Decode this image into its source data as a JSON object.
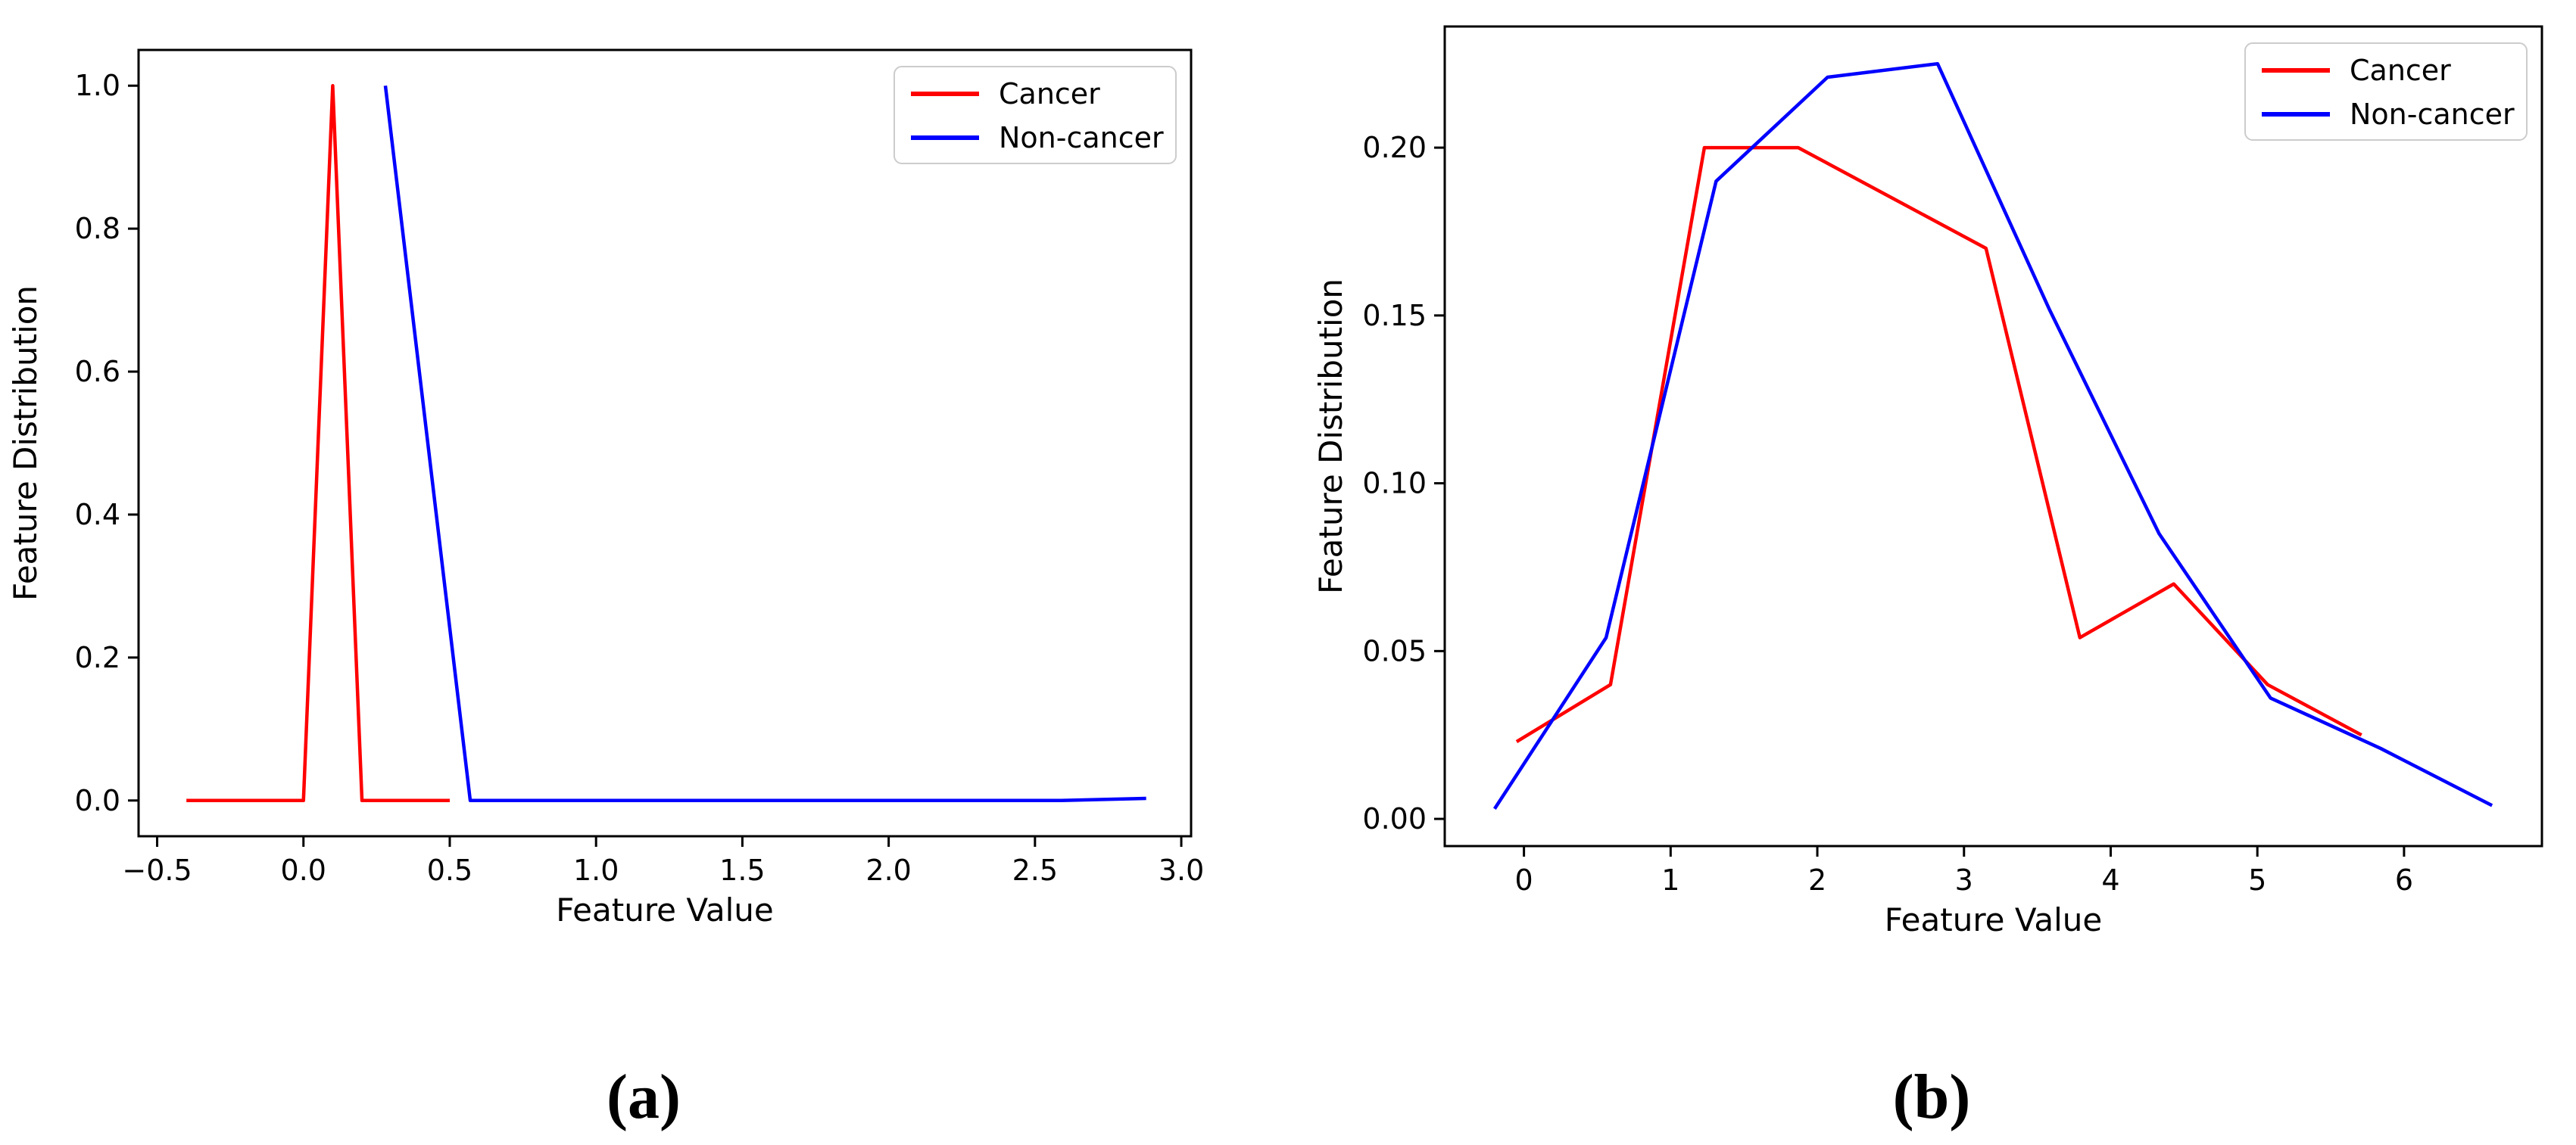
{
  "page": {
    "background": "#ffffff"
  },
  "captions": {
    "a": "(a)",
    "b": "(b)"
  },
  "legend": {
    "position": "upper right",
    "entries": [
      "Cancer",
      "Non-cancer"
    ]
  },
  "colors": {
    "cancer": "#ff0000",
    "non_cancer": "#0000ff",
    "axis": "#000000",
    "legend_border": "#cccccc"
  },
  "chart_data": [
    {
      "id": "a",
      "type": "line",
      "title": "",
      "xlabel": "Feature Value",
      "ylabel": "Feature Distribution",
      "xlim": [
        -0.5635,
        3.0335
      ],
      "ylim": [
        -0.05,
        1.05
      ],
      "grid": false,
      "legend_position": "upper right",
      "xtick_values": [
        -0.5,
        0.0,
        0.5,
        1.0,
        1.5,
        2.0,
        2.5,
        3.0
      ],
      "xtick_labels": [
        "−0.5",
        "0.0",
        "0.5",
        "1.0",
        "1.5",
        "2.0",
        "2.5",
        "3.0"
      ],
      "ytick_values": [
        0.0,
        0.2,
        0.4,
        0.6,
        0.8,
        1.0
      ],
      "ytick_labels": [
        "0.0",
        "0.2",
        "0.4",
        "0.6",
        "0.8",
        "1.0"
      ],
      "series": [
        {
          "name": "Cancer",
          "color": "#ff0000",
          "x": [
            -0.4,
            -0.3,
            -0.2,
            -0.1,
            0.0,
            0.1,
            0.2,
            0.3,
            0.4,
            0.5
          ],
          "y": [
            0,
            0,
            0,
            0,
            0,
            1.0,
            0,
            0,
            0,
            0
          ]
        },
        {
          "name": "Non-cancer",
          "color": "#0000ff",
          "x": [
            0.28,
            0.57,
            0.86,
            1.15,
            1.44,
            1.73,
            2.02,
            2.31,
            2.59,
            2.88
          ],
          "y": [
            1.0,
            0,
            0,
            0,
            0,
            0,
            0,
            0,
            0,
            0.003
          ]
        }
      ]
    },
    {
      "id": "b",
      "type": "line",
      "title": "",
      "xlabel": "Feature Value",
      "ylabel": "Feature Distribution",
      "xlim": [
        -0.54,
        6.94
      ],
      "ylim": [
        -0.0081,
        0.2361
      ],
      "grid": false,
      "legend_position": "upper right",
      "xtick_values": [
        0,
        1,
        2,
        3,
        4,
        5,
        6
      ],
      "xtick_labels": [
        "0",
        "1",
        "2",
        "3",
        "4",
        "5",
        "6"
      ],
      "ytick_values": [
        0.0,
        0.05,
        0.1,
        0.15,
        0.2
      ],
      "ytick_labels": [
        "0.00",
        "0.05",
        "0.10",
        "0.15",
        "0.20"
      ],
      "series": [
        {
          "name": "Cancer",
          "color": "#ff0000",
          "x": [
            -0.05,
            0.59,
            1.23,
            1.87,
            2.51,
            3.15,
            3.79,
            4.43,
            5.07,
            5.71
          ],
          "y": [
            0.023,
            0.04,
            0.2,
            0.2,
            0.185,
            0.17,
            0.054,
            0.07,
            0.04,
            0.025
          ]
        },
        {
          "name": "Non-cancer",
          "color": "#0000ff",
          "x": [
            -0.2,
            0.56,
            1.31,
            2.07,
            2.82,
            3.58,
            4.33,
            5.09,
            5.84,
            6.6
          ],
          "y": [
            0.003,
            0.054,
            0.19,
            0.221,
            0.225,
            0.152,
            0.085,
            0.036,
            0.021,
            0.004
          ]
        }
      ]
    }
  ]
}
